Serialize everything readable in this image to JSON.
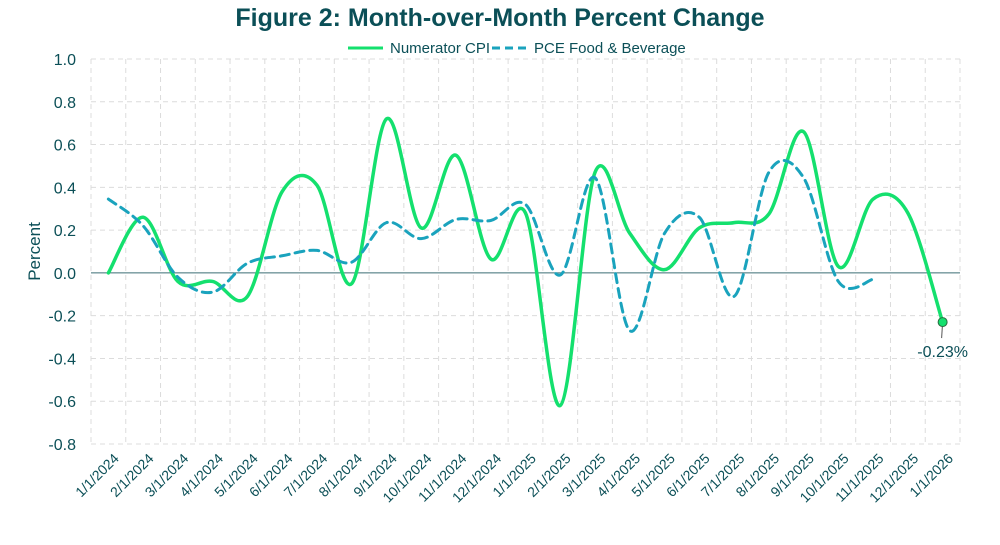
{
  "chart_data": {
    "type": "line",
    "title": "Figure 2: Month-over-Month Percent Change",
    "xlabel": "",
    "ylabel": "Percent",
    "ylim": [
      -0.8,
      1.0
    ],
    "yticks": [
      "1.0",
      "0.8",
      "0.6",
      "0.4",
      "0.2",
      "0.0",
      "-0.2",
      "-0.4",
      "-0.6",
      "-0.8"
    ],
    "grid": true,
    "legend_placement": "top-center",
    "categories": [
      "1/1/2024",
      "2/1/2024",
      "3/1/2024",
      "4/1/2024",
      "5/1/2024",
      "6/1/2024",
      "7/1/2024",
      "8/1/2024",
      "9/1/2024",
      "10/1/2024",
      "11/1/2024",
      "12/1/2024",
      "1/1/2025",
      "2/1/2025",
      "3/1/2025",
      "4/1/2025",
      "5/1/2025",
      "6/1/2025",
      "7/1/2025",
      "8/1/2025",
      "9/1/2025",
      "10/1/2025",
      "11/1/2025",
      "12/1/2025",
      "1/1/2026"
    ],
    "series": [
      {
        "name": "Numerator CPI",
        "color": "#14e06e",
        "style": "solid",
        "values": [
          0.0,
          0.26,
          -0.04,
          -0.04,
          -0.11,
          0.38,
          0.41,
          -0.05,
          0.72,
          0.21,
          0.55,
          0.065,
          0.28,
          -0.62,
          0.47,
          0.185,
          0.015,
          0.21,
          0.235,
          0.275,
          0.66,
          0.03,
          0.345,
          0.28,
          -0.23
        ]
      },
      {
        "name": "PCE Food & Beverage",
        "color": "#1aa3bd",
        "style": "dashed",
        "values": [
          0.345,
          0.22,
          -0.02,
          -0.09,
          0.045,
          0.08,
          0.105,
          0.05,
          0.235,
          0.16,
          0.25,
          0.245,
          0.32,
          -0.01,
          0.445,
          -0.27,
          0.185,
          0.26,
          -0.11,
          0.47,
          0.445,
          -0.04,
          -0.03,
          null,
          null
        ]
      }
    ],
    "annotations": [
      {
        "series": "Numerator CPI",
        "category": "1/1/2026",
        "text": "-0.23%"
      }
    ]
  }
}
